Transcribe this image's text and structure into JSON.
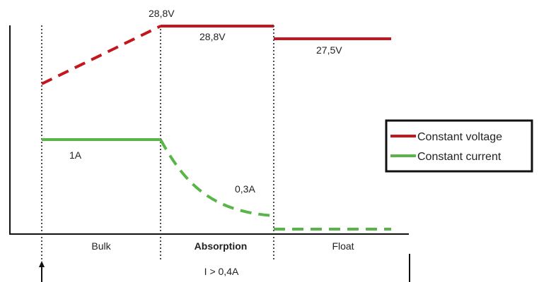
{
  "diagram": {
    "colors": {
      "voltage": "#c4161c",
      "current": "#59b548",
      "axis": "#111111"
    },
    "voltage_labels": {
      "peak_top": "28,8V",
      "absorption": "28,8V",
      "float": "27,5V"
    },
    "current_labels": {
      "bulk": "1A",
      "absorption_end": "0,3A"
    },
    "phases": {
      "bulk": "Bulk",
      "absorption": "Absorption",
      "float": "Float"
    },
    "condition": "I > 0,4A",
    "legend": {
      "voltage": "Constant voltage",
      "current": "Constant current"
    }
  }
}
